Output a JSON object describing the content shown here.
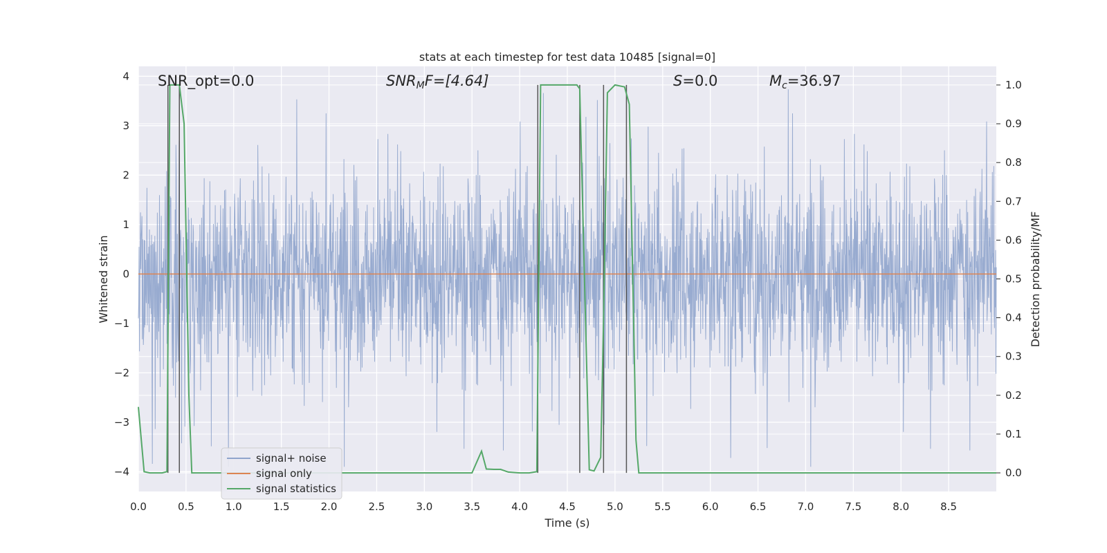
{
  "chart_data": {
    "type": "line",
    "title": "stats at each timestep for test data 10485 [signal=0]",
    "xlabel": "Time (s)",
    "ylabel_left": "Whitened strain",
    "ylabel_right": "Detection probability/MF",
    "xlim": [
      0.0,
      9.0
    ],
    "ylim_left": [
      -4.4,
      4.2
    ],
    "ylim_right": [
      -0.048,
      1.048
    ],
    "x_ticks": [
      "0.0",
      "0.5",
      "1.0",
      "1.5",
      "2.0",
      "2.5",
      "3.0",
      "3.5",
      "4.0",
      "4.5",
      "5.0",
      "5.5",
      "6.0",
      "6.5",
      "7.0",
      "7.5",
      "8.0",
      "8.5"
    ],
    "y_left_ticks": [
      "4",
      "3",
      "2",
      "1",
      "0",
      "−1",
      "−2",
      "−3",
      "−4"
    ],
    "y_right_ticks": [
      "1.0",
      "0.9",
      "0.8",
      "0.7",
      "0.6",
      "0.5",
      "0.4",
      "0.3",
      "0.2",
      "0.1",
      "0.0"
    ],
    "grid": true,
    "legend_position": "lower-left",
    "annotations": {
      "snr_opt": "SNR_opt=0.0",
      "snr_mf_base": "SNR",
      "snr_mf_sub": "M",
      "snr_mf_rest": "F=[4.64]",
      "s_italic": "S",
      "s_rest": "=0.0",
      "mc_italic": "M",
      "mc_sub": "c",
      "mc_rest": "=36.97"
    },
    "series": [
      {
        "name": "signal+ noise",
        "color": "#8fa4cc",
        "description": "whitened noise, amplitude envelope about ±2.5 with spikes to ±3.5"
      },
      {
        "name": "signal only",
        "color": "#dd8452",
        "constant": 0
      },
      {
        "name": "signal statistics",
        "color": "#55a868",
        "x": [
          0.0,
          0.06,
          0.12,
          0.25,
          0.3,
          0.33,
          0.38,
          0.43,
          0.48,
          0.53,
          0.56,
          3.5,
          3.6,
          3.65,
          3.73,
          3.8,
          3.88,
          4.0,
          4.1,
          4.18,
          4.22,
          4.6,
          4.63,
          4.73,
          4.78,
          4.85,
          4.88,
          4.92,
          4.96,
          5.0,
          5.1,
          5.15,
          5.22,
          5.25,
          9.0
        ],
        "y": [
          0.17,
          0.003,
          0.0,
          0.0,
          0.003,
          1.0,
          1.0,
          1.0,
          0.9,
          0.2,
          0.0,
          0.0,
          0.056,
          0.01,
          0.009,
          0.009,
          0.002,
          0.0,
          0.0,
          0.003,
          1.0,
          1.0,
          0.99,
          0.008,
          0.005,
          0.04,
          0.4,
          0.98,
          0.99,
          1.0,
          0.995,
          0.95,
          0.085,
          0.0,
          0.0
        ]
      }
    ],
    "vertical_markers_x": [
      0.31,
      0.43,
      4.19,
      4.63,
      4.88,
      5.12
    ],
    "legend": [
      "signal+ noise",
      "signal only",
      "signal statistics"
    ]
  }
}
